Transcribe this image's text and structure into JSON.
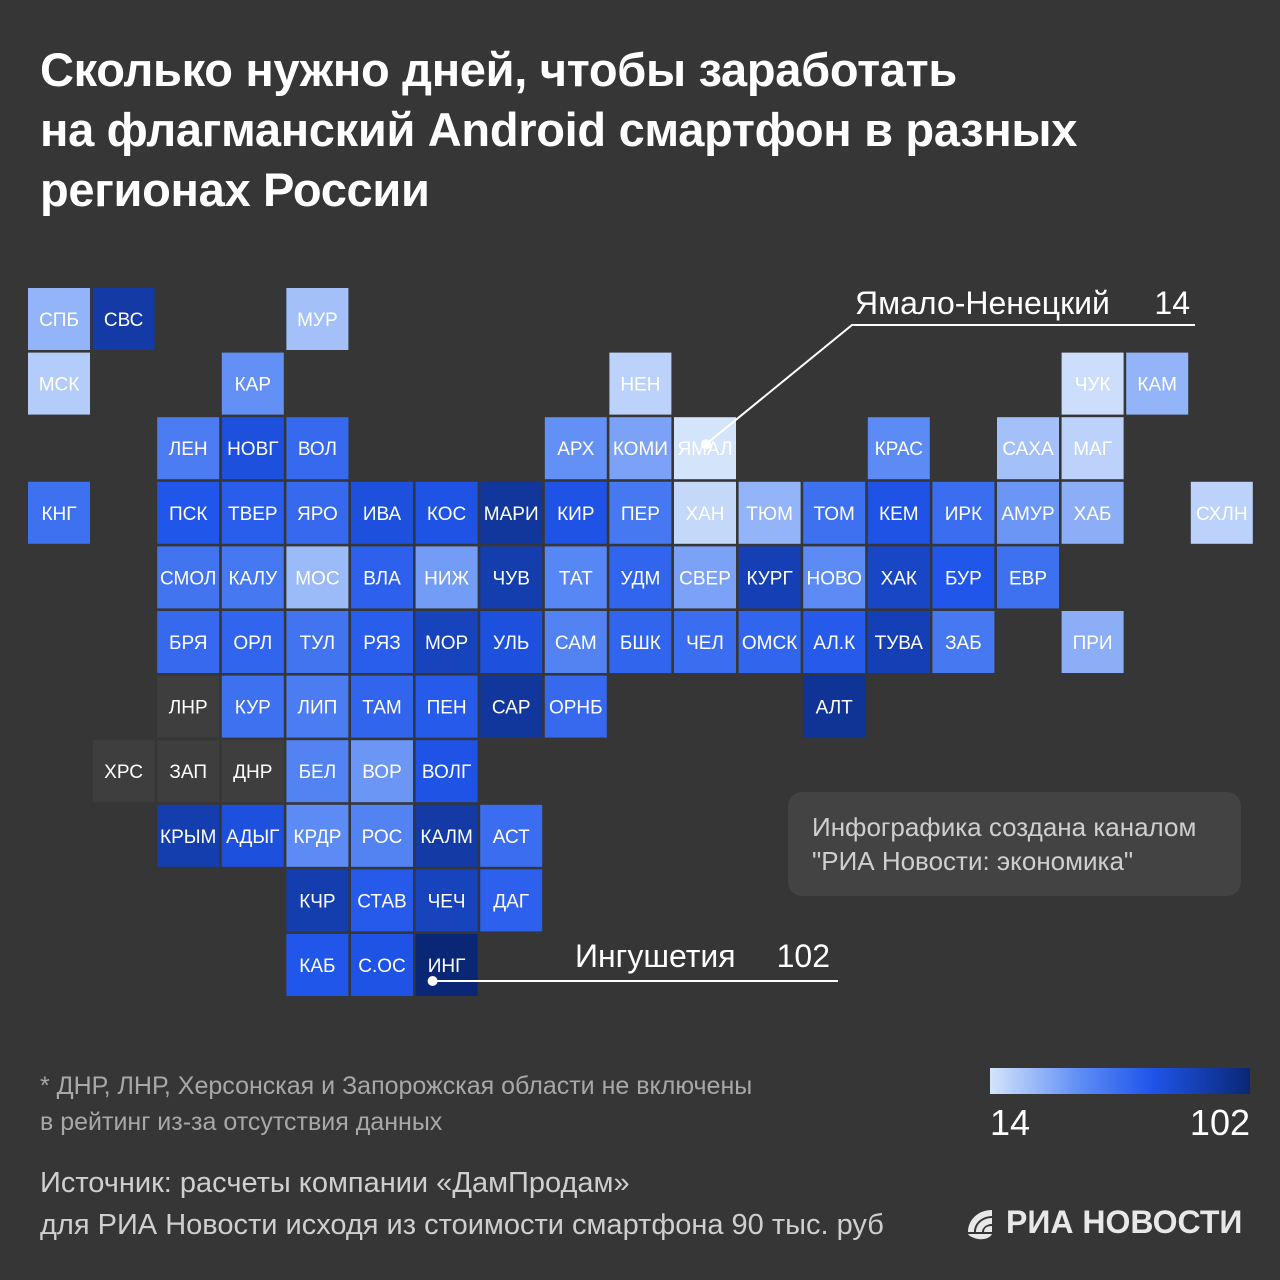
{
  "title_lines": [
    "Сколько нужно дней, чтобы заработать",
    "на флагманский Android смартфон в разных",
    "регионах России"
  ],
  "chart_data": {
    "type": "heatmap",
    "title": "Сколько нужно дней, чтобы заработать на флагманский Android смартфон в разных регионах России",
    "color_scale": {
      "min": 14,
      "max": 102,
      "colors": [
        "#d4e4fb",
        "#5d8cf5",
        "#1f55ea",
        "#0a2775"
      ]
    },
    "no_data_color": "#3e3e3e",
    "tiles": [
      {
        "label": "СПБ",
        "row": 0,
        "col": 0,
        "value": 30
      },
      {
        "label": "СВС",
        "row": 0,
        "col": 1,
        "value": 90
      },
      {
        "label": "МУР",
        "row": 0,
        "col": 4,
        "value": 26
      },
      {
        "label": "МСК",
        "row": 1,
        "col": 0,
        "value": 22
      },
      {
        "label": "КАР",
        "row": 1,
        "col": 3,
        "value": 42
      },
      {
        "label": "НЕН",
        "row": 1,
        "col": 9,
        "value": 20
      },
      {
        "label": "ЧУК",
        "row": 1,
        "col": 16,
        "value": 16
      },
      {
        "label": "КАМ",
        "row": 1,
        "col": 17,
        "value": 30
      },
      {
        "label": "ЛЕН",
        "row": 2,
        "col": 2,
        "value": 52
      },
      {
        "label": "НОВГ",
        "row": 2,
        "col": 3,
        "value": 76
      },
      {
        "label": "ВОЛ",
        "row": 2,
        "col": 4,
        "value": 62
      },
      {
        "label": "АРХ",
        "row": 2,
        "col": 8,
        "value": 42
      },
      {
        "label": "КОМИ",
        "row": 2,
        "col": 9,
        "value": 36
      },
      {
        "label": "ЯМАЛ",
        "row": 2,
        "col": 10,
        "value": 14
      },
      {
        "label": "КРАС",
        "row": 2,
        "col": 13,
        "value": 44
      },
      {
        "label": "САХА",
        "row": 2,
        "col": 15,
        "value": 26
      },
      {
        "label": "МАГ",
        "row": 2,
        "col": 16,
        "value": 20
      },
      {
        "label": "КНГ",
        "row": 3,
        "col": 0,
        "value": 58
      },
      {
        "label": "ПСК",
        "row": 3,
        "col": 2,
        "value": 72
      },
      {
        "label": "ТВЕР",
        "row": 3,
        "col": 3,
        "value": 68
      },
      {
        "label": "ЯРО",
        "row": 3,
        "col": 4,
        "value": 62
      },
      {
        "label": "ИВА",
        "row": 3,
        "col": 5,
        "value": 76
      },
      {
        "label": "КОС",
        "row": 3,
        "col": 6,
        "value": 74
      },
      {
        "label": "МАРИ",
        "row": 3,
        "col": 7,
        "value": 92
      },
      {
        "label": "КИР",
        "row": 3,
        "col": 8,
        "value": 74
      },
      {
        "label": "ПЕР",
        "row": 3,
        "col": 9,
        "value": 54
      },
      {
        "label": "ХАН",
        "row": 3,
        "col": 10,
        "value": 18
      },
      {
        "label": "ТЮМ",
        "row": 3,
        "col": 11,
        "value": 30
      },
      {
        "label": "ТОМ",
        "row": 3,
        "col": 12,
        "value": 58
      },
      {
        "label": "КЕМ",
        "row": 3,
        "col": 13,
        "value": 74
      },
      {
        "label": "ИРК",
        "row": 3,
        "col": 14,
        "value": 60
      },
      {
        "label": "АМУР",
        "row": 3,
        "col": 15,
        "value": 40
      },
      {
        "label": "ХАБ",
        "row": 3,
        "col": 16,
        "value": 32
      },
      {
        "label": "СХЛН",
        "row": 3,
        "col": 18,
        "value": 20
      },
      {
        "label": "СМОЛ",
        "row": 4,
        "col": 2,
        "value": 56
      },
      {
        "label": "КАЛУ",
        "row": 4,
        "col": 3,
        "value": 54
      },
      {
        "label": "МОС",
        "row": 4,
        "col": 4,
        "value": 28
      },
      {
        "label": "ВЛА",
        "row": 4,
        "col": 5,
        "value": 66
      },
      {
        "label": "НИЖ",
        "row": 4,
        "col": 6,
        "value": 38
      },
      {
        "label": "ЧУВ",
        "row": 4,
        "col": 7,
        "value": 88
      },
      {
        "label": "ТАТ",
        "row": 4,
        "col": 8,
        "value": 46
      },
      {
        "label": "УДМ",
        "row": 4,
        "col": 9,
        "value": 64
      },
      {
        "label": "СВЕР",
        "row": 4,
        "col": 10,
        "value": 36
      },
      {
        "label": "КУРГ",
        "row": 4,
        "col": 11,
        "value": 86
      },
      {
        "label": "НОВО",
        "row": 4,
        "col": 12,
        "value": 44
      },
      {
        "label": "ХАК",
        "row": 4,
        "col": 13,
        "value": 82
      },
      {
        "label": "БУР",
        "row": 4,
        "col": 14,
        "value": 72
      },
      {
        "label": "ЕВР",
        "row": 4,
        "col": 15,
        "value": 58
      },
      {
        "label": "БРЯ",
        "row": 5,
        "col": 2,
        "value": 62
      },
      {
        "label": "ОРЛ",
        "row": 5,
        "col": 3,
        "value": 64
      },
      {
        "label": "ТУЛ",
        "row": 5,
        "col": 4,
        "value": 56
      },
      {
        "label": "РЯЗ",
        "row": 5,
        "col": 5,
        "value": 68
      },
      {
        "label": "МОР",
        "row": 5,
        "col": 6,
        "value": 84
      },
      {
        "label": "УЛЬ",
        "row": 5,
        "col": 7,
        "value": 76
      },
      {
        "label": "САМ",
        "row": 5,
        "col": 8,
        "value": 48
      },
      {
        "label": "БШК",
        "row": 5,
        "col": 9,
        "value": 64
      },
      {
        "label": "ЧЕЛ",
        "row": 5,
        "col": 10,
        "value": 60
      },
      {
        "label": "ОМСК",
        "row": 5,
        "col": 11,
        "value": 64
      },
      {
        "label": "АЛ.К",
        "row": 5,
        "col": 12,
        "value": 70
      },
      {
        "label": "ТУВА",
        "row": 5,
        "col": 13,
        "value": 86
      },
      {
        "label": "ЗАБ",
        "row": 5,
        "col": 14,
        "value": 54
      },
      {
        "label": "ПРИ",
        "row": 5,
        "col": 16,
        "value": 32
      },
      {
        "label": "ЛНР",
        "row": 6,
        "col": 2,
        "value": null
      },
      {
        "label": "КУР",
        "row": 6,
        "col": 3,
        "value": 58
      },
      {
        "label": "ЛИП",
        "row": 6,
        "col": 4,
        "value": 52
      },
      {
        "label": "ТАМ",
        "row": 6,
        "col": 5,
        "value": 64
      },
      {
        "label": "ПЕН",
        "row": 6,
        "col": 6,
        "value": 70
      },
      {
        "label": "САР",
        "row": 6,
        "col": 7,
        "value": 92
      },
      {
        "label": "ОРНБ",
        "row": 6,
        "col": 8,
        "value": 62
      },
      {
        "label": "АЛТ",
        "row": 6,
        "col": 12,
        "value": 94
      },
      {
        "label": "ХРС",
        "row": 7,
        "col": 1,
        "value": null
      },
      {
        "label": "ЗАП",
        "row": 7,
        "col": 2,
        "value": null
      },
      {
        "label": "ДНР",
        "row": 7,
        "col": 3,
        "value": null
      },
      {
        "label": "БЕЛ",
        "row": 7,
        "col": 4,
        "value": 48
      },
      {
        "label": "ВОР",
        "row": 7,
        "col": 5,
        "value": 40
      },
      {
        "label": "ВОЛГ",
        "row": 7,
        "col": 6,
        "value": 74
      },
      {
        "label": "КРЫМ",
        "row": 8,
        "col": 2,
        "value": 88
      },
      {
        "label": "АДЫГ",
        "row": 8,
        "col": 3,
        "value": 76
      },
      {
        "label": "КРДР",
        "row": 8,
        "col": 4,
        "value": 44
      },
      {
        "label": "РОС",
        "row": 8,
        "col": 5,
        "value": 48
      },
      {
        "label": "КАЛМ",
        "row": 8,
        "col": 6,
        "value": 90
      },
      {
        "label": "АСТ",
        "row": 8,
        "col": 7,
        "value": 60
      },
      {
        "label": "КЧР",
        "row": 9,
        "col": 4,
        "value": 88
      },
      {
        "label": "СТАВ",
        "row": 9,
        "col": 5,
        "value": 70
      },
      {
        "label": "ЧЕЧ",
        "row": 9,
        "col": 6,
        "value": 84
      },
      {
        "label": "ДАГ",
        "row": 9,
        "col": 7,
        "value": 66
      },
      {
        "label": "КАБ",
        "row": 10,
        "col": 4,
        "value": 72
      },
      {
        "label": "С.ОС",
        "row": 10,
        "col": 5,
        "value": 74
      },
      {
        "label": "ИНГ",
        "row": 10,
        "col": 6,
        "value": 102
      }
    ],
    "callouts": [
      {
        "region": "ЯМАЛ",
        "label": "Ямало-Ненецкий",
        "value": "14"
      },
      {
        "region": "ИНГ",
        "label": "Ингушетия",
        "value": "102"
      }
    ]
  },
  "credit_lines": [
    "Инфографика создана каналом",
    "\"РИА Новости: экономика\""
  ],
  "footnote_lines": [
    "* ДНР, ЛНР, Херсонская и Запорожская области не включены",
    "в рейтинг из-за отсутствия данных"
  ],
  "legend": {
    "min_label": "14",
    "max_label": "102"
  },
  "source_lines": [
    "Источник: расчеты компании «ДамПродам»",
    "для РИА Новости исходя из стоимости смартфона 90 тыс. руб"
  ],
  "logo_text": "РИА НОВОСТИ"
}
